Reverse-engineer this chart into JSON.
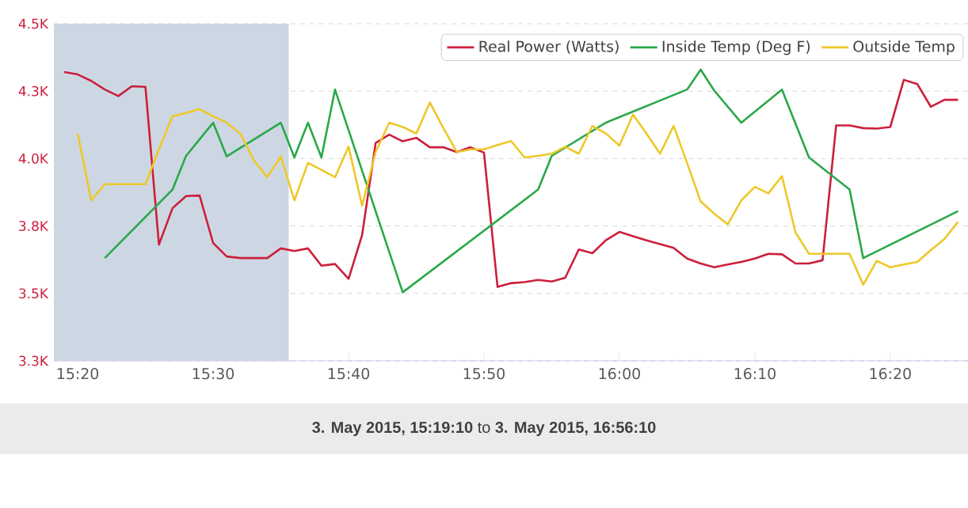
{
  "chart_data": {
    "type": "line",
    "xlim": [
      15.304,
      16.429
    ],
    "ylim": [
      3250,
      4500
    ],
    "xticks": [
      {
        "value": 15.3333,
        "label": "15:20"
      },
      {
        "value": 15.5,
        "label": "15:30"
      },
      {
        "value": 15.6667,
        "label": "15:40"
      },
      {
        "value": 15.8333,
        "label": "15:50"
      },
      {
        "value": 16,
        "label": "16:00"
      },
      {
        "value": 16.1667,
        "label": "16:10"
      },
      {
        "value": 16.3333,
        "label": "16:20"
      }
    ],
    "yticks": [
      {
        "value": 3250,
        "label": "3.3K"
      },
      {
        "value": 3500,
        "label": "3.5K"
      },
      {
        "value": 3750,
        "label": "3.8K"
      },
      {
        "value": 4000,
        "label": "4.0K"
      },
      {
        "value": 4250,
        "label": "4.3K"
      },
      {
        "value": 4500,
        "label": "4.5K"
      }
    ],
    "grid": "y",
    "legend": "top right",
    "line_style": "solid",
    "bands": [
      {
        "axis": "x",
        "from": 15.304,
        "to": 15.593,
        "color": "#cdd7e3"
      }
    ],
    "annotations": [
      "**3. May 2015, 15:19:10** to **3. May 2015, 16:56:10**"
    ],
    "series": [
      {
        "name": "Real Power (Watts)",
        "color": "#cc1f3c",
        "x": [
          15.3167,
          15.3333,
          15.35,
          15.3667,
          15.3833,
          15.4,
          15.4167,
          15.4333,
          15.45,
          15.4667,
          15.4833,
          15.5,
          15.5167,
          15.5333,
          15.55,
          15.5667,
          15.5833,
          15.6,
          15.6167,
          15.6333,
          15.65,
          15.6667,
          15.6833,
          15.7,
          15.7167,
          15.7333,
          15.75,
          15.7667,
          15.7833,
          15.8,
          15.8167,
          15.8333,
          15.85,
          15.8667,
          15.8833,
          15.9,
          15.9167,
          15.9333,
          15.95,
          15.9667,
          15.9833,
          16,
          16.0167,
          16.0333,
          16.05,
          16.0667,
          16.0833,
          16.1,
          16.1167,
          16.1333,
          16.15,
          16.1667,
          16.1833,
          16.2,
          16.2167,
          16.2333,
          16.25,
          16.2667,
          16.2833,
          16.3,
          16.3167,
          16.3333,
          16.35,
          16.3667,
          16.3833,
          16.4,
          16.4167
        ],
        "values": [
          4321,
          4312,
          4288,
          4256,
          4232,
          4268,
          4266,
          3681,
          3816,
          3861,
          3863,
          3687,
          3637,
          3631,
          3631,
          3631,
          3667,
          3657,
          3667,
          3603,
          3609,
          3554,
          3716,
          4058,
          4089,
          4064,
          4077,
          4042,
          4042,
          4024,
          4042,
          4022,
          3524,
          3538,
          3542,
          3550,
          3544,
          3558,
          3663,
          3649,
          3697,
          3728,
          3712,
          3697,
          3683,
          3669,
          3629,
          3611,
          3597,
          3607,
          3617,
          3629,
          3647,
          3645,
          3611,
          3611,
          3623,
          4123,
          4123,
          4113,
          4111,
          4117,
          4292,
          4276,
          4192,
          4218,
          4218
        ]
      },
      {
        "name": "Inside Temp (Deg F)",
        "color": "#2aa84a",
        "x": [
          15.3667,
          15.45,
          15.4667,
          15.5,
          15.5167,
          15.5833,
          15.6,
          15.6167,
          15.6333,
          15.65,
          15.7333,
          15.9,
          15.9167,
          15.9833,
          16.0833,
          16.1,
          16.1167,
          16.15,
          16.2,
          16.2333,
          16.2833,
          16.3,
          16.4167
        ],
        "values": [
          3631,
          3885,
          4010,
          4133,
          4008,
          4133,
          4004,
          4133,
          4004,
          4256,
          3504,
          3885,
          4010,
          4133,
          4256,
          4330,
          4252,
          4133,
          4256,
          4004,
          3885,
          3631,
          3805
        ]
      },
      {
        "name": "Outside Temp",
        "color": "#eec82a",
        "x": [
          15.3333,
          15.35,
          15.3667,
          15.3833,
          15.4,
          15.4167,
          15.4333,
          15.45,
          15.4667,
          15.4833,
          15.5,
          15.5167,
          15.5333,
          15.55,
          15.5667,
          15.5833,
          15.6,
          15.6167,
          15.6333,
          15.65,
          15.6667,
          15.6833,
          15.7,
          15.7167,
          15.7333,
          15.75,
          15.7667,
          15.7833,
          15.8,
          15.8167,
          15.8333,
          15.85,
          15.8667,
          15.8833,
          15.9,
          15.9167,
          15.9333,
          15.95,
          15.9667,
          15.9833,
          16,
          16.0167,
          16.0333,
          16.05,
          16.0667,
          16.0833,
          16.1,
          16.1167,
          16.1333,
          16.15,
          16.1667,
          16.1833,
          16.2,
          16.2167,
          16.2333,
          16.25,
          16.2667,
          16.2833,
          16.3,
          16.3167,
          16.3333,
          16.35,
          16.3667,
          16.3833,
          16.4,
          16.4167
        ],
        "values": [
          4093,
          3845,
          3905,
          3905,
          3905,
          3905,
          4034,
          4157,
          4169,
          4183,
          4157,
          4133,
          4093,
          3994,
          3931,
          4008,
          3845,
          3984,
          3958,
          3931,
          4044,
          3825,
          4024,
          4133,
          4117,
          4093,
          4208,
          4113,
          4024,
          4034,
          4034,
          4050,
          4065,
          4004,
          4010,
          4018,
          4044,
          4018,
          4121,
          4093,
          4048,
          4163,
          4093,
          4018,
          4121,
          3984,
          3841,
          3796,
          3756,
          3845,
          3895,
          3871,
          3935,
          3726,
          3647,
          3647,
          3647,
          3647,
          3532,
          3621,
          3597,
          3607,
          3617,
          3661,
          3702,
          3766
        ]
      }
    ]
  }
}
